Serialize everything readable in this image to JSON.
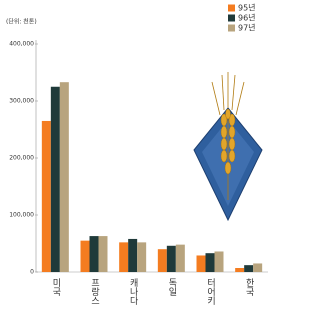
{
  "chart_data": {
    "type": "bar",
    "unit_label": "(단위: 천톤)",
    "categories": [
      "미국",
      "프랑스",
      "캐나다",
      "독일",
      "터어키",
      "한국"
    ],
    "series": [
      {
        "name": "95년",
        "color": "#f47c20",
        "values": [
          265000,
          55000,
          52000,
          40000,
          29000,
          7000
        ]
      },
      {
        "name": "96년",
        "color": "#1f3a3a",
        "values": [
          325000,
          63000,
          58000,
          46000,
          33000,
          12000
        ]
      },
      {
        "name": "97년",
        "color": "#b8a47e",
        "values": [
          333000,
          63000,
          52000,
          48000,
          36000,
          15000
        ]
      }
    ],
    "ylim": [
      0,
      400000
    ],
    "yticks": [
      {
        "value": 0,
        "label": "0"
      },
      {
        "value": 100000,
        "label": "100,000"
      },
      {
        "value": 200000,
        "label": "200,000"
      },
      {
        "value": 300000,
        "label": "300,000"
      },
      {
        "value": 400000,
        "label": "400,000"
      }
    ]
  }
}
